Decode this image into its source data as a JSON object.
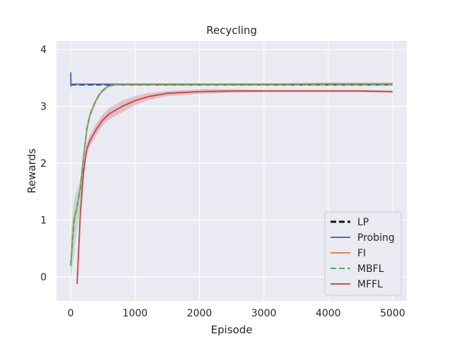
{
  "chart_data": {
    "type": "line",
    "title": "Recycling",
    "xlabel": "Episode",
    "ylabel": "Rewards",
    "xlim": [
      -220,
      5220
    ],
    "ylim": [
      -0.42,
      4.15
    ],
    "xticks": [
      0,
      1000,
      2000,
      3000,
      4000,
      5000
    ],
    "yticks": [
      0,
      1,
      2,
      3,
      4
    ],
    "grid": true,
    "legend_position": "bottom-right",
    "colors": {
      "background": "#eaeaf2",
      "grid": "#ffffff",
      "LP": "#111111",
      "Probing": "#4c72b0",
      "FI": "#dd8452",
      "MBFL": "#55a868",
      "MFFL": "#c44e52"
    },
    "series": [
      {
        "name": "LP",
        "style": "dashed",
        "x": [
          0,
          5000
        ],
        "y": [
          3.38,
          3.38
        ]
      },
      {
        "name": "Probing",
        "style": "solid",
        "x": [
          0,
          5,
          10,
          100,
          500,
          1000,
          2000,
          3000,
          4000,
          5000
        ],
        "y": [
          3.6,
          3.36,
          3.39,
          3.39,
          3.39,
          3.39,
          3.39,
          3.39,
          3.39,
          3.39
        ],
        "band_x": [
          0,
          5,
          10,
          20
        ],
        "band_low": [
          3.22,
          3.3,
          3.36,
          3.38
        ],
        "band_high": [
          3.98,
          3.5,
          3.42,
          3.4
        ]
      },
      {
        "name": "FI",
        "style": "solid",
        "x": [
          0,
          50,
          100,
          150,
          200,
          250,
          300,
          350,
          400,
          450,
          500,
          550,
          600,
          700,
          800,
          1000,
          2000,
          3000,
          4000,
          5000
        ],
        "y": [
          0.2,
          1.0,
          1.25,
          1.55,
          2.1,
          2.6,
          2.85,
          3.0,
          3.12,
          3.22,
          3.28,
          3.33,
          3.36,
          3.38,
          3.39,
          3.39,
          3.39,
          3.39,
          3.4,
          3.4
        ]
      },
      {
        "name": "MBFL",
        "style": "dashed",
        "x": [
          0,
          50,
          100,
          150,
          200,
          250,
          300,
          350,
          400,
          450,
          500,
          550,
          600,
          700,
          800,
          1000,
          2000,
          3000,
          4000,
          5000
        ],
        "y": [
          0.2,
          0.95,
          1.25,
          1.55,
          2.1,
          2.6,
          2.85,
          3.0,
          3.12,
          3.22,
          3.28,
          3.33,
          3.36,
          3.38,
          3.38,
          3.38,
          3.38,
          3.38,
          3.38,
          3.38
        ],
        "band_x": [
          0,
          50,
          100,
          150,
          200,
          250,
          300,
          400,
          500,
          600
        ],
        "band_low": [
          -0.05,
          0.4,
          0.85,
          1.25,
          1.95,
          2.5,
          2.78,
          3.08,
          3.25,
          3.34
        ],
        "band_high": [
          0.7,
          1.35,
          1.55,
          1.7,
          2.2,
          2.68,
          2.9,
          3.15,
          3.31,
          3.38
        ]
      },
      {
        "name": "MFFL",
        "style": "solid",
        "x": [
          100,
          150,
          200,
          250,
          300,
          400,
          500,
          600,
          800,
          1000,
          1200,
          1500,
          2000,
          2500,
          3000,
          3500,
          4000,
          4500,
          5000
        ],
        "y": [
          -0.12,
          1.1,
          1.85,
          2.25,
          2.4,
          2.6,
          2.76,
          2.87,
          3.0,
          3.1,
          3.17,
          3.23,
          3.26,
          3.27,
          3.27,
          3.27,
          3.27,
          3.27,
          3.26
        ],
        "band_low": [
          -0.12,
          1.0,
          1.75,
          2.15,
          2.3,
          2.5,
          2.66,
          2.77,
          2.9,
          3.02,
          3.11,
          3.18,
          3.22,
          3.24,
          3.25,
          3.25,
          3.25,
          3.25,
          3.24
        ],
        "band_high": [
          -0.12,
          1.2,
          1.95,
          2.35,
          2.5,
          2.7,
          2.86,
          2.97,
          3.1,
          3.18,
          3.23,
          3.27,
          3.3,
          3.3,
          3.29,
          3.29,
          3.29,
          3.29,
          3.28
        ]
      }
    ]
  }
}
